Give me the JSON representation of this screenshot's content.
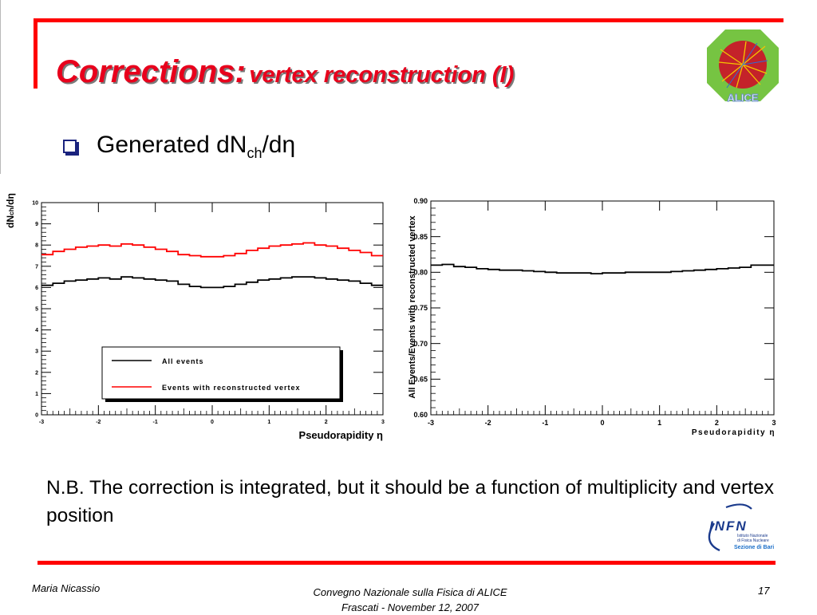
{
  "slide": {
    "title_main": "Corrections:",
    "title_sub": "vertex reconstruction (I)",
    "bullet_prefix": "Generated dN",
    "bullet_sub": "ch",
    "bullet_suffix": "/dη",
    "note": "N.B. The correction is integrated, but it should be a function of multiplicity and vertex position",
    "footer_author": "Maria Nicassio",
    "footer_conference_line1": "Convegno Nazionale sulla Fisica di ALICE",
    "footer_conference_line2": "Frascati -  November 12, 2007",
    "page_number": "17",
    "colors": {
      "title_red": "#e8001c",
      "frame_red": "#ff0000",
      "bullet_blue": "#1a237e",
      "series_red": "#ff0000",
      "series_black": "#000000"
    },
    "logos": {
      "alice_text": "ALICE",
      "infn_text": "INFN",
      "infn_sub1": "Istituto Nazionale",
      "infn_sub2": "di Fisica Nucleare",
      "infn_sub3": "Sezione di Bari"
    }
  },
  "chart_data": [
    {
      "type": "line",
      "ylabel": "dN_ch/dη",
      "xlabel": "Pseudorapidity η",
      "xlim": [
        -3,
        3
      ],
      "ylim": [
        0,
        10
      ],
      "xticks": [
        -3,
        -2,
        -1,
        0,
        1,
        2,
        3
      ],
      "yticks": [
        0,
        1,
        2,
        3,
        4,
        5,
        6,
        7,
        8,
        9,
        10
      ],
      "legend_position": "bottom-right",
      "grid": false,
      "x": [
        -2.9,
        -2.7,
        -2.5,
        -2.3,
        -2.1,
        -1.9,
        -1.7,
        -1.5,
        -1.3,
        -1.1,
        -0.9,
        -0.7,
        -0.5,
        -0.3,
        -0.1,
        0.1,
        0.3,
        0.5,
        0.7,
        0.9,
        1.1,
        1.3,
        1.5,
        1.7,
        1.9,
        2.1,
        2.3,
        2.5,
        2.7,
        2.9
      ],
      "series": [
        {
          "name": "All events",
          "color": "#000000",
          "values": [
            6.1,
            6.2,
            6.3,
            6.35,
            6.4,
            6.45,
            6.4,
            6.5,
            6.45,
            6.4,
            6.35,
            6.3,
            6.15,
            6.05,
            6.0,
            6.0,
            6.05,
            6.15,
            6.25,
            6.35,
            6.4,
            6.45,
            6.5,
            6.5,
            6.45,
            6.4,
            6.35,
            6.3,
            6.2,
            6.1
          ]
        },
        {
          "name": "Events with reconstructed vertex",
          "color": "#ff0000",
          "values": [
            7.55,
            7.7,
            7.8,
            7.9,
            7.95,
            8.0,
            7.95,
            8.05,
            8.0,
            7.9,
            7.8,
            7.7,
            7.55,
            7.5,
            7.45,
            7.45,
            7.5,
            7.6,
            7.75,
            7.85,
            7.95,
            8.0,
            8.05,
            8.1,
            8.0,
            7.95,
            7.85,
            7.75,
            7.65,
            7.5
          ]
        }
      ]
    },
    {
      "type": "line",
      "ylabel": "All Events/Events with reconstructed vertex",
      "xlabel": "Pseudorapidity η",
      "xlim": [
        -3,
        3
      ],
      "ylim": [
        0.6,
        0.9
      ],
      "xticks": [
        -3,
        -2,
        -1,
        0,
        1,
        2,
        3
      ],
      "yticks": [
        0.6,
        0.65,
        0.7,
        0.75,
        0.8,
        0.85,
        0.9
      ],
      "grid": false,
      "x": [
        -2.9,
        -2.7,
        -2.5,
        -2.3,
        -2.1,
        -1.9,
        -1.7,
        -1.5,
        -1.3,
        -1.1,
        -0.9,
        -0.7,
        -0.5,
        -0.3,
        -0.1,
        0.1,
        0.3,
        0.5,
        0.7,
        0.9,
        1.1,
        1.3,
        1.5,
        1.7,
        1.9,
        2.1,
        2.3,
        2.5,
        2.7,
        2.9
      ],
      "series": [
        {
          "color": "#000000",
          "values": [
            0.81,
            0.811,
            0.808,
            0.807,
            0.805,
            0.804,
            0.803,
            0.803,
            0.802,
            0.801,
            0.8,
            0.799,
            0.799,
            0.799,
            0.798,
            0.799,
            0.799,
            0.8,
            0.8,
            0.8,
            0.8,
            0.801,
            0.802,
            0.803,
            0.804,
            0.805,
            0.806,
            0.807,
            0.81,
            0.81
          ]
        }
      ]
    }
  ]
}
